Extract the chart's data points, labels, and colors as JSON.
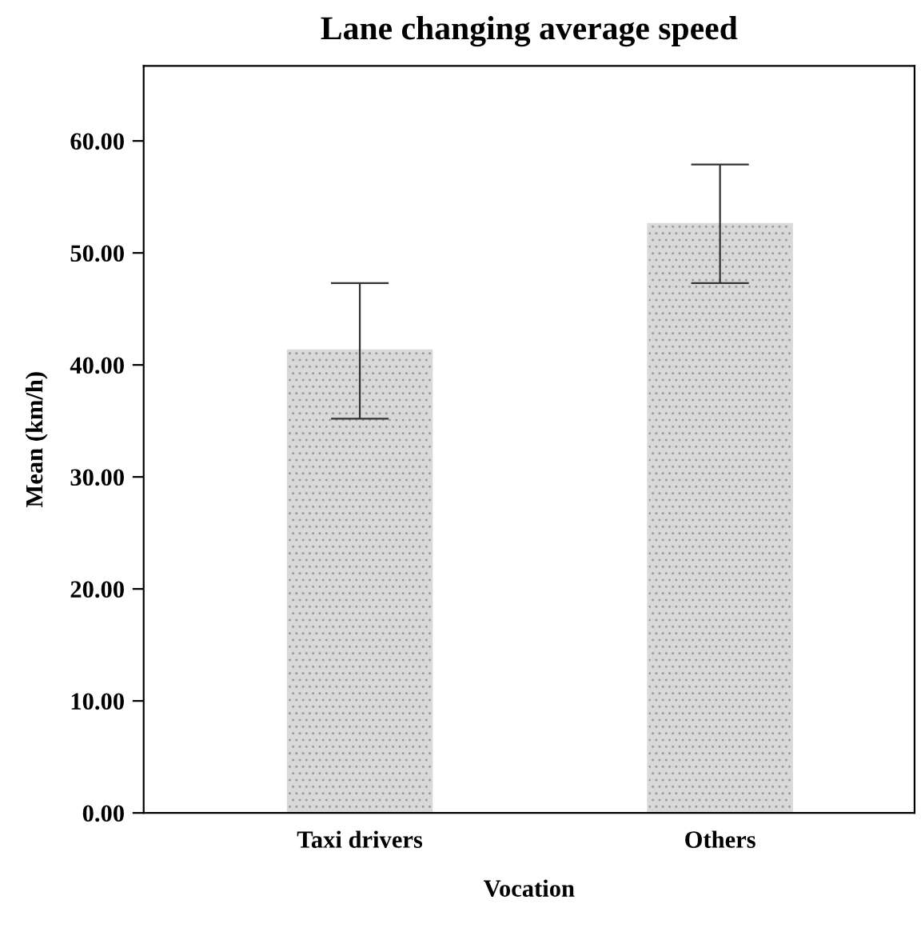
{
  "chart_data": {
    "type": "bar",
    "title": "Lane changing average speed",
    "xlabel": "Vocation",
    "ylabel": "Mean (km/h)",
    "categories": [
      "Taxi drivers",
      "Others"
    ],
    "values": [
      41.3,
      52.6
    ],
    "errors": [
      [
        35.2,
        47.3
      ],
      [
        47.3,
        57.9
      ]
    ],
    "color": "#d9d9d9",
    "ylim": [
      0,
      66.7
    ],
    "yticks": [
      {
        "value": 0,
        "label": "0.00"
      },
      {
        "value": 10,
        "label": "10.00"
      },
      {
        "value": 20,
        "label": "20.00"
      },
      {
        "value": 30,
        "label": "30.00"
      },
      {
        "value": 40,
        "label": "40.00"
      },
      {
        "value": 50,
        "label": "50.00"
      },
      {
        "value": 60,
        "label": "60.00"
      }
    ],
    "grid": false,
    "legend": false
  }
}
